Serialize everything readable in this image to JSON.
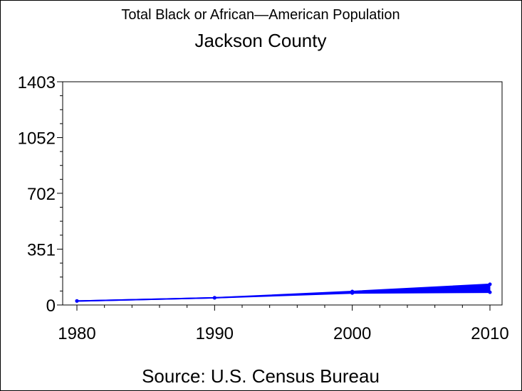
{
  "chart_data": {
    "type": "line",
    "title": "Total Black or African—American Population",
    "subtitle": "Jackson County",
    "source": "Source: U.S. Census Bureau",
    "x": [
      1980,
      1990,
      2000,
      2010
    ],
    "xticks": [
      "1980",
      "1990",
      "2000",
      "2010"
    ],
    "xlim": [
      1980,
      2010
    ],
    "ylim": [
      0,
      1403
    ],
    "yticks": [
      "0",
      "351",
      "702",
      "1052",
      "1403"
    ],
    "ytick_values": [
      0,
      351,
      702,
      1052,
      1403
    ],
    "series": [
      {
        "values": [
          25,
          45,
          85,
          130
        ]
      },
      {
        "values": [
          25,
          45,
          75,
          80
        ]
      }
    ],
    "color": "#0000ff",
    "grid": false
  }
}
